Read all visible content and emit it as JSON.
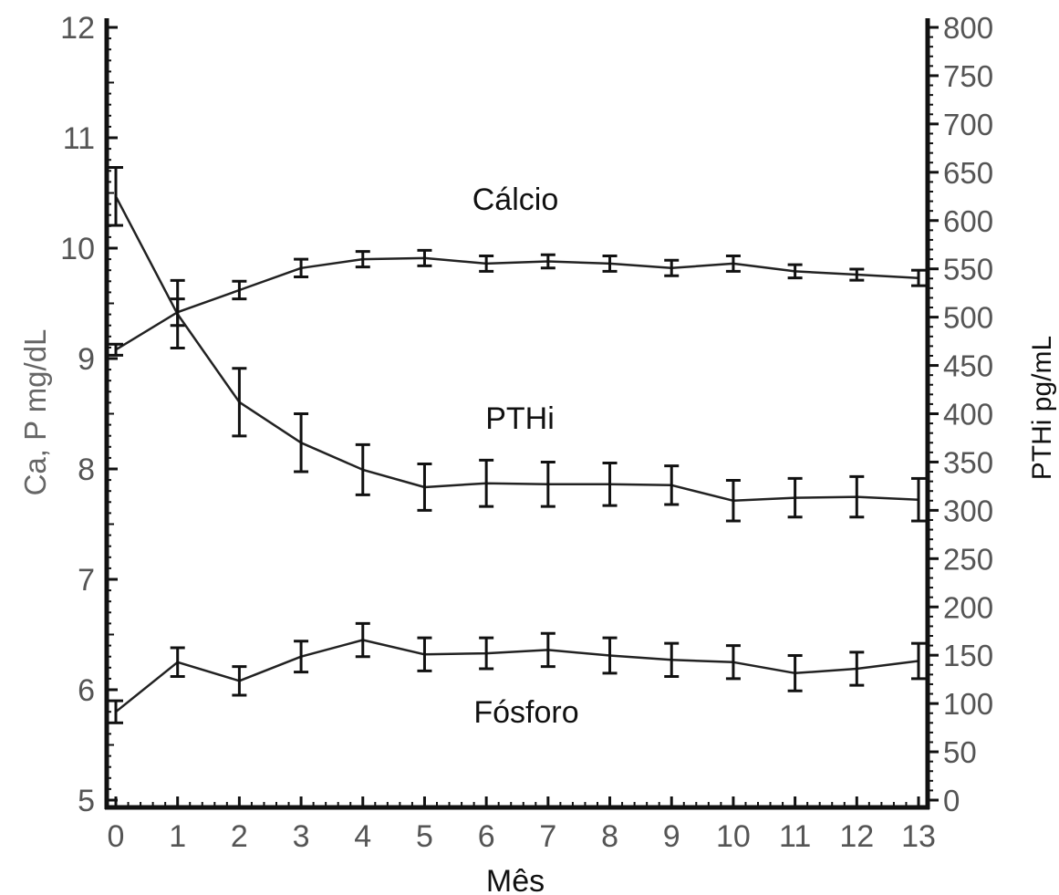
{
  "chart_data": {
    "type": "line",
    "title": "",
    "xlabel": "Mês",
    "ylabel_left": "Ca, P mg/dL",
    "ylabel_right": "PTHi pg/mL",
    "xlim": [
      0,
      13
    ],
    "ylim_left": [
      5,
      12
    ],
    "ylim_right": [
      0,
      800
    ],
    "x_ticks": [
      "0",
      "1",
      "2",
      "3",
      "4",
      "5",
      "6",
      "7",
      "8",
      "9",
      "10",
      "11",
      "12",
      "13"
    ],
    "y_left_ticks": [
      "5",
      "6",
      "7",
      "8",
      "9",
      "10",
      "11",
      "12"
    ],
    "y_right_ticks": [
      "0",
      "50",
      "100",
      "150",
      "200",
      "250",
      "300",
      "350",
      "400",
      "450",
      "500",
      "550",
      "600",
      "650",
      "700",
      "750",
      "800"
    ],
    "grid": false,
    "legend": "none",
    "x": [
      0,
      1,
      2,
      3,
      4,
      5,
      6,
      7,
      8,
      9,
      10,
      11,
      12,
      13
    ],
    "series": [
      {
        "name": "Cálcio",
        "axis": "left",
        "values": [
          9.08,
          9.42,
          9.62,
          9.82,
          9.9,
          9.91,
          9.86,
          9.88,
          9.86,
          9.82,
          9.86,
          9.79,
          9.76,
          9.73
        ],
        "errors": [
          0.05,
          0.12,
          0.08,
          0.08,
          0.07,
          0.07,
          0.07,
          0.06,
          0.07,
          0.07,
          0.07,
          0.06,
          0.05,
          0.07
        ]
      },
      {
        "name": "PTHi",
        "axis": "right",
        "values": [
          625,
          503,
          412,
          370,
          342,
          324,
          328,
          327,
          327,
          326,
          310,
          313,
          314,
          311
        ],
        "errors": [
          30,
          35,
          35,
          30,
          26,
          24,
          24,
          23,
          22,
          20,
          21,
          20,
          21,
          22
        ]
      },
      {
        "name": "Fósforo",
        "axis": "left",
        "values": [
          5.8,
          6.25,
          6.08,
          6.3,
          6.45,
          6.32,
          6.33,
          6.36,
          6.31,
          6.27,
          6.25,
          6.15,
          6.19,
          6.26
        ],
        "errors": [
          0.1,
          0.13,
          0.13,
          0.14,
          0.15,
          0.15,
          0.14,
          0.15,
          0.16,
          0.15,
          0.15,
          0.16,
          0.15,
          0.16
        ]
      }
    ]
  }
}
